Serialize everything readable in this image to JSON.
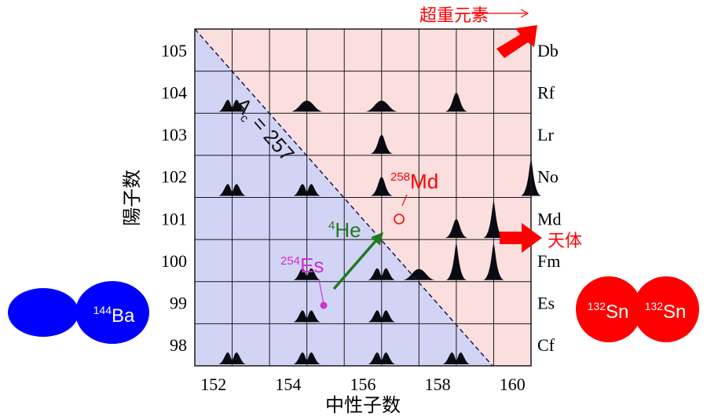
{
  "axes": {
    "x_title": "中性子数",
    "y_title": "陽子数",
    "x_ticks": [
      "152",
      "154",
      "156",
      "158",
      "160"
    ],
    "y_ticks": [
      "98",
      "99",
      "100",
      "101",
      "102",
      "103",
      "104",
      "105"
    ]
  },
  "elements": [
    "Cf",
    "Es",
    "Fm",
    "Md",
    "No",
    "Lr",
    "Rf",
    "Db"
  ],
  "diagonal_label": {
    "a": "A",
    "sub": "c",
    "rest": " = 257"
  },
  "annotations": {
    "superheavy": "超重元素",
    "celestial": "天体",
    "md": {
      "mass": "258",
      "symbol": "Md"
    },
    "es": {
      "mass": "254",
      "symbol": "Es"
    },
    "he": {
      "mass": "4",
      "symbol": "He"
    }
  },
  "fragments": {
    "ba": {
      "mass": "144",
      "symbol": "Ba"
    },
    "sn1": {
      "mass": "132",
      "symbol": "Sn"
    },
    "sn2": {
      "mass": "132",
      "symbol": "Sn"
    }
  },
  "colors": {
    "asym_region": "#d2d4f6",
    "sym_region": "#fbdede",
    "accent_red": "#ff0000",
    "blue_nucleus": "#0000ff",
    "he_arrow": "#1f7a1f",
    "es_magenta": "#cc33cc",
    "grid": "#1a1a1a"
  },
  "chart_data": {
    "type": "heatmap",
    "x_range": [
      151.5,
      160.5
    ],
    "y_range": [
      97.5,
      105.5
    ],
    "cells": [
      {
        "n": 152,
        "z": 98,
        "shape": "double"
      },
      {
        "n": 154,
        "z": 98,
        "shape": "double"
      },
      {
        "n": 156,
        "z": 98,
        "shape": "double"
      },
      {
        "n": 158,
        "z": 98,
        "shape": "double"
      },
      {
        "n": 154,
        "z": 99,
        "shape": "double"
      },
      {
        "n": 156,
        "z": 99,
        "shape": "double"
      },
      {
        "n": 154,
        "z": 100,
        "shape": "double"
      },
      {
        "n": 156,
        "z": 100,
        "shape": "double"
      },
      {
        "n": 157,
        "z": 100,
        "shape": "broad"
      },
      {
        "n": 158,
        "z": 100,
        "shape": "sharp"
      },
      {
        "n": 159,
        "z": 100,
        "shape": "sharp"
      },
      {
        "n": 158,
        "z": 101,
        "shape": "medium"
      },
      {
        "n": 159,
        "z": 101,
        "shape": "sharp"
      },
      {
        "n": 152,
        "z": 102,
        "shape": "double"
      },
      {
        "n": 154,
        "z": 102,
        "shape": "double"
      },
      {
        "n": 156,
        "z": 102,
        "shape": "medium"
      },
      {
        "n": 160,
        "z": 102,
        "shape": "sharp"
      },
      {
        "n": 156,
        "z": 103,
        "shape": "medium"
      },
      {
        "n": 152,
        "z": 104,
        "shape": "double"
      },
      {
        "n": 154,
        "z": 104,
        "shape": "broad"
      },
      {
        "n": 156,
        "z": 104,
        "shape": "broad"
      },
      {
        "n": 158,
        "z": 104,
        "shape": "medium"
      }
    ],
    "diagonal_A": 257,
    "md_point": {
      "n": 157,
      "z": 101
    },
    "es_point": {
      "n": 155,
      "z": 99
    }
  }
}
